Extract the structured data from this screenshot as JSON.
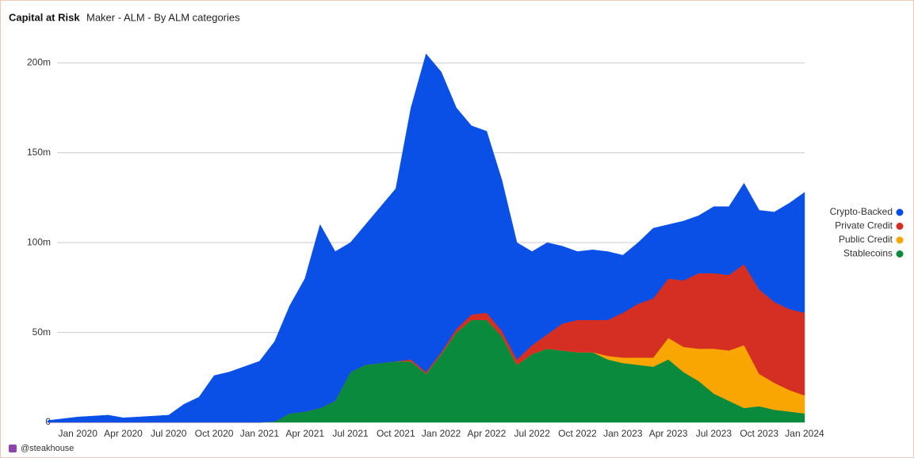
{
  "chart_data": {
    "type": "area",
    "stacked": true,
    "title": "Capital at Risk",
    "subtitle": "Maker - ALM - By ALM categories",
    "source": "@steakhouse",
    "x": [
      "2019-11",
      "2019-12",
      "2020-01",
      "2020-02",
      "2020-03",
      "2020-04",
      "2020-05",
      "2020-06",
      "2020-07",
      "2020-08",
      "2020-09",
      "2020-10",
      "2020-11",
      "2020-12",
      "2021-01",
      "2021-02",
      "2021-03",
      "2021-04",
      "2021-05",
      "2021-06",
      "2021-07",
      "2021-08",
      "2021-09",
      "2021-10",
      "2021-11",
      "2021-12",
      "2022-01",
      "2022-02",
      "2022-03",
      "2022-04",
      "2022-05",
      "2022-06",
      "2022-07",
      "2022-08",
      "2022-09",
      "2022-10",
      "2022-11",
      "2022-12",
      "2023-01",
      "2023-02",
      "2023-03",
      "2023-04",
      "2023-05",
      "2023-06",
      "2023-07",
      "2023-08",
      "2023-09",
      "2023-10",
      "2023-11",
      "2023-12",
      "2024-01"
    ],
    "series": [
      {
        "name": "Crypto-Backed",
        "color": "#0a50e6",
        "values": [
          1,
          2,
          3,
          3.5,
          4,
          2.5,
          3,
          3.5,
          4,
          10,
          14,
          26,
          28,
          31,
          34,
          44.5,
          60,
          74,
          102,
          83,
          72,
          78,
          87,
          96,
          140,
          177,
          156,
          123,
          105,
          101,
          84,
          65,
          52,
          51,
          43,
          38,
          39,
          38,
          32,
          34,
          39,
          30,
          33,
          32,
          37,
          38,
          45,
          44,
          50,
          59,
          67
        ]
      },
      {
        "name": "Private Credit",
        "color": "#d42f22",
        "values": [
          0,
          0,
          0,
          0,
          0,
          0,
          0,
          0,
          0,
          0,
          0,
          0,
          0,
          0,
          0,
          0,
          0,
          0,
          0,
          0,
          0,
          0,
          0,
          0,
          1,
          1,
          1,
          2,
          3,
          4,
          3,
          3,
          5,
          8,
          15,
          18,
          18,
          20,
          25,
          30,
          33,
          33,
          37,
          42,
          42,
          42,
          45,
          47,
          45,
          45,
          46
        ]
      },
      {
        "name": "Public Credit",
        "color": "#f9a602",
        "values": [
          0,
          0,
          0,
          0,
          0,
          0,
          0,
          0,
          0,
          0,
          0,
          0,
          0,
          0,
          0,
          0,
          0,
          0,
          0,
          0,
          0,
          0,
          0,
          0,
          0,
          0,
          0,
          0,
          0,
          0,
          0,
          0,
          0,
          0,
          0,
          0,
          0,
          2,
          3,
          4,
          5,
          12,
          14,
          18,
          25,
          28,
          35,
          18,
          15,
          12,
          10
        ]
      },
      {
        "name": "Stablecoins",
        "color": "#0a8a3c",
        "values": [
          0,
          0,
          0,
          0,
          0,
          0,
          0,
          0,
          0,
          0,
          0,
          0,
          0,
          0,
          0,
          0.5,
          5,
          6,
          8,
          12,
          28,
          32,
          33,
          34,
          34,
          27,
          38,
          50,
          57,
          57,
          48,
          32,
          38,
          41,
          40,
          39,
          39,
          35,
          33,
          32,
          31,
          35,
          28,
          23,
          16,
          12,
          8,
          9,
          7,
          6,
          5
        ]
      }
    ],
    "xlim": [
      "2019-11",
      "2024-01"
    ],
    "xticks": [
      {
        "value": "2020-01",
        "label": "Jan 2020"
      },
      {
        "value": "2020-04",
        "label": "Apr 2020"
      },
      {
        "value": "2020-07",
        "label": "Jul 2020"
      },
      {
        "value": "2020-10",
        "label": "Oct 2020"
      },
      {
        "value": "2021-01",
        "label": "Jan 2021"
      },
      {
        "value": "2021-04",
        "label": "Apr 2021"
      },
      {
        "value": "2021-07",
        "label": "Jul 2021"
      },
      {
        "value": "2021-10",
        "label": "Oct 2021"
      },
      {
        "value": "2022-01",
        "label": "Jan 2022"
      },
      {
        "value": "2022-04",
        "label": "Apr 2022"
      },
      {
        "value": "2022-07",
        "label": "Jul 2022"
      },
      {
        "value": "2022-10",
        "label": "Oct 2022"
      },
      {
        "value": "2023-01",
        "label": "Jan 2023"
      },
      {
        "value": "2023-04",
        "label": "Apr 2023"
      },
      {
        "value": "2023-07",
        "label": "Jul 2023"
      },
      {
        "value": "2023-10",
        "label": "Oct 2023"
      },
      {
        "value": "2024-01",
        "label": "Jan 2024"
      }
    ],
    "ylim": [
      0,
      220
    ],
    "yticks": [
      0,
      {
        "value": 50,
        "label": "50m"
      },
      {
        "value": 100,
        "label": "100m"
      },
      {
        "value": 150,
        "label": "150m"
      },
      {
        "value": 200,
        "label": "200m"
      }
    ],
    "grid": true,
    "legend": "right"
  }
}
